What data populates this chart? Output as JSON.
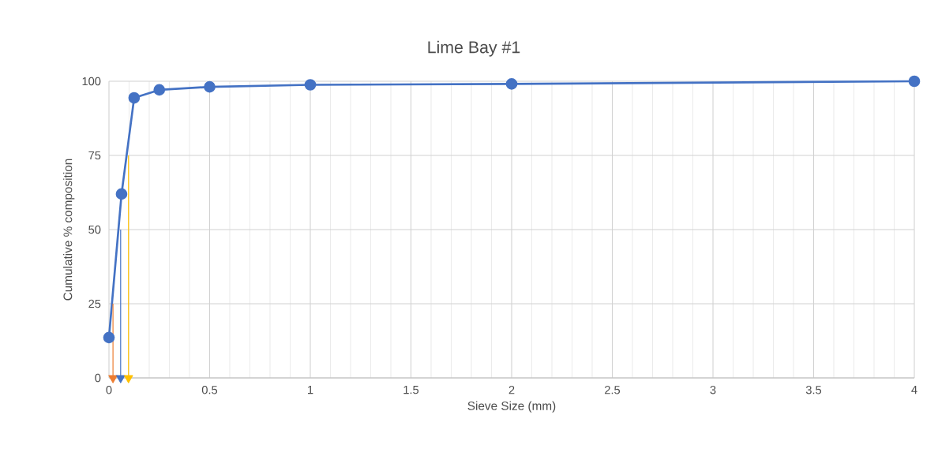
{
  "chart_data": {
    "type": "line",
    "title": "Lime Bay #1",
    "xlabel": "Sieve Size (mm)",
    "ylabel": "Cumulative % composition",
    "x": [
      0,
      0.0625,
      0.125,
      0.25,
      0.5,
      1,
      2,
      4
    ],
    "series": [
      {
        "color": "#4472c4",
        "marker": "circle",
        "values": [
          13.6,
          62,
          94.4,
          97.1,
          98.1,
          98.8,
          99.1,
          100
        ]
      },
      {
        "color": "#ed7d31",
        "marker": "triangle",
        "x": [
          0.02,
          0.02
        ],
        "values": [
          25,
          0
        ]
      },
      {
        "color": "#4472c4",
        "marker": "triangle",
        "x": [
          0.058,
          0.058
        ],
        "values": [
          50,
          0
        ]
      },
      {
        "color": "#ffc000",
        "marker": "triangle",
        "x": [
          0.097,
          0.097
        ],
        "values": [
          75,
          0
        ]
      }
    ],
    "xlim": [
      0,
      4
    ],
    "xticks": [
      0,
      0.5,
      1,
      1.5,
      2,
      2.5,
      3,
      3.5,
      4
    ],
    "ylim": [
      0,
      100
    ],
    "yticks": [
      0,
      25,
      50,
      75,
      100
    ],
    "grid": true,
    "line_style": "solid"
  }
}
